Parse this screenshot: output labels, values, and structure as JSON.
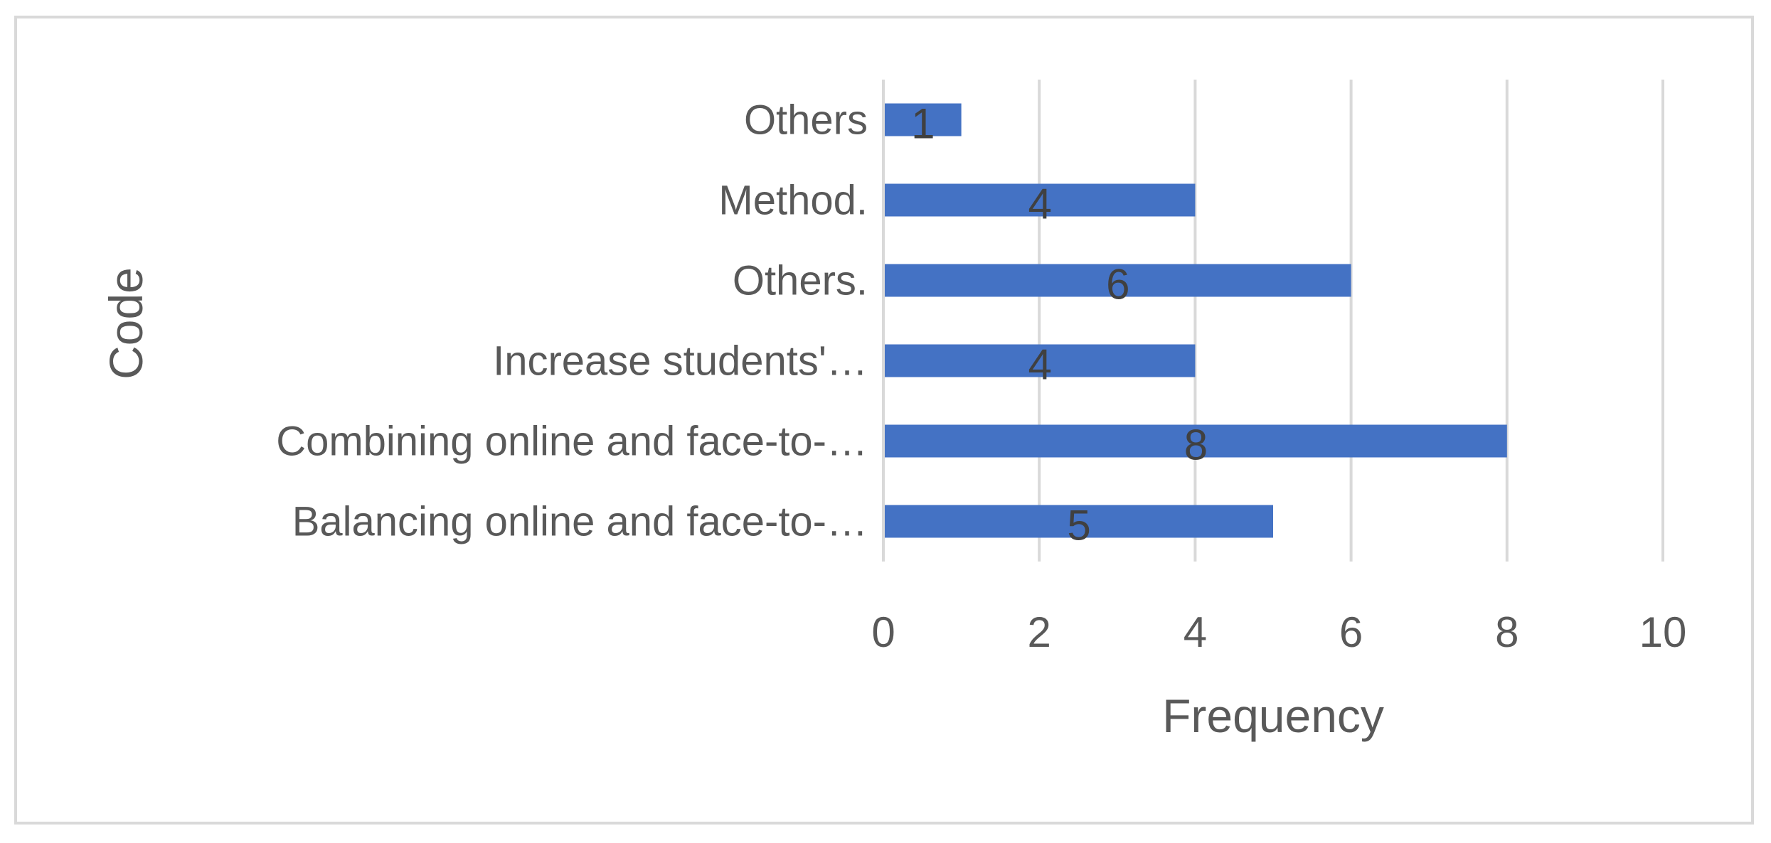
{
  "chart_data": {
    "type": "bar",
    "orientation": "horizontal",
    "categories": [
      "Others",
      "Method.",
      "Others.",
      "Increase students'…",
      "Combining online and face-to-…",
      "Balancing online and face-to-…"
    ],
    "values": [
      1,
      4,
      6,
      4,
      8,
      5
    ],
    "xlabel": "Frequency",
    "ylabel": "Code",
    "xlim": [
      0,
      10
    ],
    "xticks": [
      "0",
      "2",
      "4",
      "6",
      "8",
      "10"
    ],
    "grid": "vertical",
    "legend": "none",
    "data_labels": true,
    "colors": {
      "bar": "#4472C4",
      "grid": "#d9d9d9",
      "text": "#595959",
      "frame": "#d9d9d9"
    }
  }
}
